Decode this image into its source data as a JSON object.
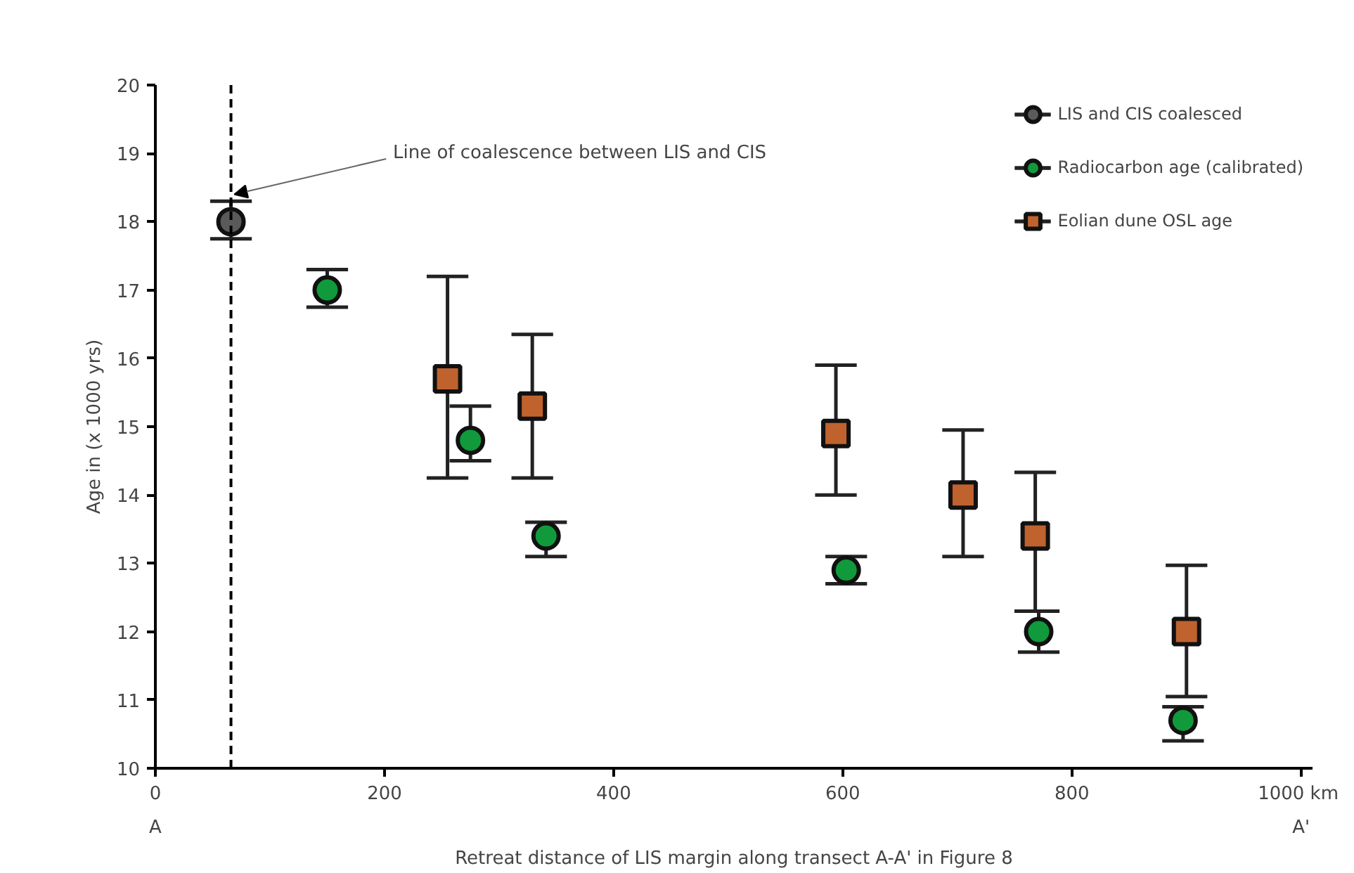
{
  "chart_data": {
    "type": "scatter",
    "xlabel": "Retreat distance of LIS margin along transect A-A' in Figure 8",
    "ylabel": "Age in (x 1000 yrs)",
    "xlim": [
      0,
      1010
    ],
    "ylim": [
      10,
      20
    ],
    "xticks": [
      0,
      200,
      400,
      600,
      800,
      {
        "value": 1000,
        "label": "1000  km"
      }
    ],
    "yticks": [
      10,
      11,
      12,
      13,
      14,
      15,
      16,
      17,
      18,
      19,
      20
    ],
    "grid": false,
    "legend": "top right",
    "series": [
      {
        "name": "LIS and CIS coalesced",
        "color": "#5a5a5a",
        "marker": "circle",
        "x": [
          66
        ],
        "values": [
          18.0
        ],
        "errors": [
          [
            17.75,
            18.3
          ]
        ]
      },
      {
        "name": "Radiocarbon age (calibrated)",
        "color": "#109a3c",
        "marker": "circle",
        "x": [
          150,
          275,
          341,
          603,
          771,
          897
        ],
        "values": [
          17.0,
          14.8,
          13.4,
          12.9,
          12.0,
          10.7
        ],
        "errors": [
          [
            16.75,
            17.3
          ],
          [
            14.5,
            15.3
          ],
          [
            13.1,
            13.6
          ],
          [
            12.7,
            13.1
          ],
          [
            11.7,
            12.3
          ],
          [
            10.4,
            10.9
          ]
        ]
      },
      {
        "name": "Eolian dune OSL age",
        "color": "#c0622d",
        "marker": "square",
        "x": [
          255,
          329,
          594,
          705,
          768,
          900
        ],
        "values": [
          15.7,
          15.3,
          14.9,
          14.0,
          13.4,
          12.0
        ],
        "errors": [
          [
            14.25,
            17.2
          ],
          [
            14.25,
            16.35
          ],
          [
            14.0,
            15.9
          ],
          [
            13.1,
            14.95
          ],
          [
            12.3,
            14.33
          ],
          [
            11.05,
            12.97
          ]
        ]
      }
    ],
    "ref_lines": [
      {
        "axis": "x",
        "value": 66,
        "label": "Line of coalescence between LIS and CIS",
        "line_style": "dashed",
        "color": "#000000"
      }
    ],
    "annotations": [
      "A",
      "A'"
    ]
  }
}
